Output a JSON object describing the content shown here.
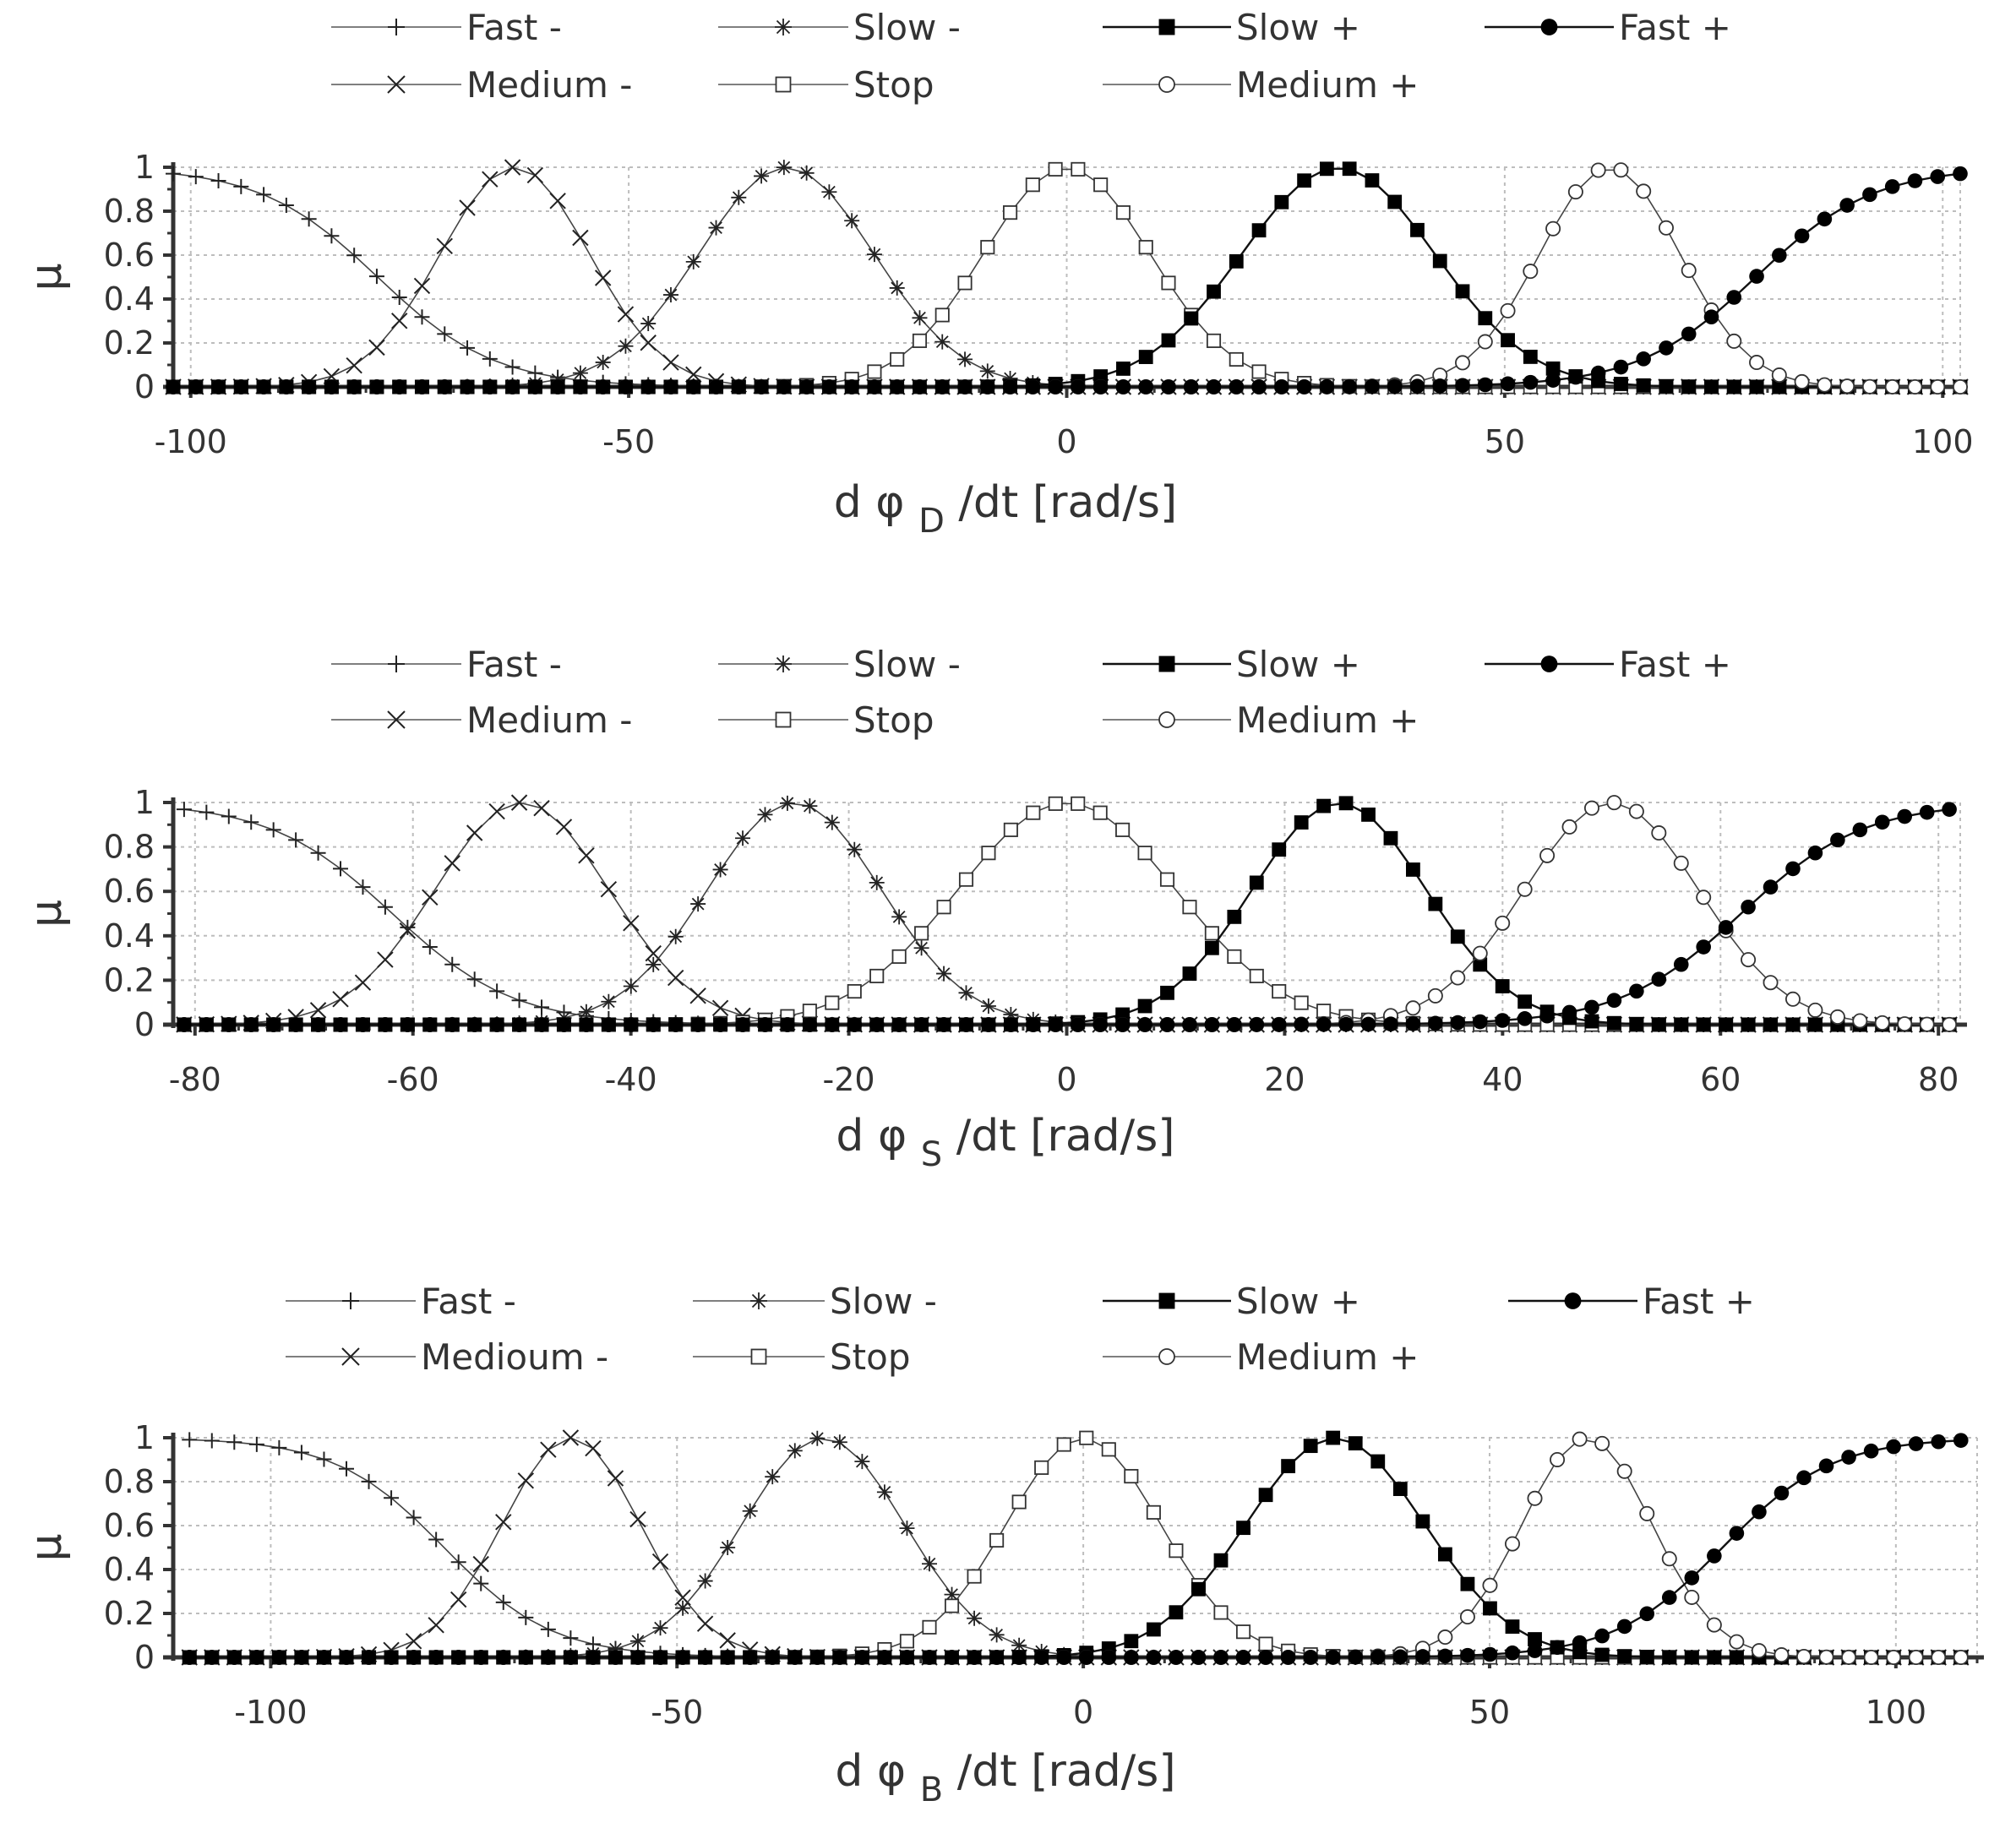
{
  "chart_data": [
    {
      "type": "line",
      "title": "",
      "xlabel": {
        "prefix": "d φ ",
        "subscript": "D",
        "suffix": " /dt [rad/s]"
      },
      "ylabel": "μ",
      "xlim": [
        -102,
        102
      ],
      "ylim": [
        0,
        1
      ],
      "xticks": [
        -100,
        -50,
        0,
        50,
        100
      ],
      "xtick_labels": [
        "-100",
        "-50",
        "0",
        "50",
        "100"
      ],
      "yticks": [
        0,
        0.2,
        0.4,
        0.6,
        0.8,
        1
      ],
      "ytick_labels": [
        "0",
        "0.2",
        "0.4",
        "0.6",
        "0.8",
        "1"
      ],
      "grid": true,
      "legend_position": "top",
      "x_sample_range": [
        -102,
        102
      ],
      "series": [
        {
          "name": "Fast -",
          "marker": "plus",
          "kind": "left-sigmoid",
          "center": -80,
          "sigma": 9
        },
        {
          "name": "Medium -",
          "marker": "x",
          "kind": "gaussian",
          "center": -63,
          "sigma": 8.5
        },
        {
          "name": "Slow -",
          "marker": "star",
          "kind": "gaussian",
          "center": -32,
          "sigma": 10
        },
        {
          "name": "Stop",
          "marker": "square-open",
          "kind": "gaussian",
          "center": 0,
          "sigma": 9.5
        },
        {
          "name": "Slow +",
          "marker": "square-filled",
          "kind": "gaussian",
          "center": 31,
          "sigma": 11
        },
        {
          "name": "Medium +",
          "marker": "circle-open",
          "kind": "gaussian",
          "center": 62,
          "sigma": 8
        },
        {
          "name": "Fast +",
          "marker": "circle-filled",
          "kind": "right-sigmoid",
          "center": 80,
          "sigma": 9
        }
      ]
    },
    {
      "type": "line",
      "title": "",
      "xlabel": {
        "prefix": "d φ ",
        "subscript": "S",
        "suffix": " /dt [rad/s]"
      },
      "ylabel": "μ",
      "xlim": [
        -82,
        82
      ],
      "ylim": [
        0,
        1
      ],
      "xticks": [
        -80,
        -60,
        -40,
        -20,
        0,
        20,
        40,
        60,
        80
      ],
      "xtick_labels": [
        "-80",
        "-60",
        "-40",
        "-20",
        "0",
        "20",
        "40",
        "60",
        "80"
      ],
      "yticks": [
        0,
        0.2,
        0.4,
        0.6,
        0.8,
        1
      ],
      "ytick_labels": [
        "0",
        "0.2",
        "0.4",
        "0.6",
        "0.8",
        "1"
      ],
      "grid": true,
      "legend_position": "top",
      "x_sample_range": [
        -81,
        81
      ],
      "series": [
        {
          "name": "Fast -",
          "marker": "plus",
          "kind": "left-sigmoid",
          "center": -63,
          "sigma": 7.5
        },
        {
          "name": "Medium -",
          "marker": "x",
          "kind": "gaussian",
          "center": -50,
          "sigma": 8
        },
        {
          "name": "Slow -",
          "marker": "star",
          "kind": "gaussian",
          "center": -25,
          "sigma": 8
        },
        {
          "name": "Stop",
          "marker": "square-open",
          "kind": "gaussian",
          "center": 0,
          "sigma": 10
        },
        {
          "name": "Slow +",
          "marker": "square-filled",
          "kind": "gaussian",
          "center": 25,
          "sigma": 8
        },
        {
          "name": "Medium +",
          "marker": "circle-open",
          "kind": "gaussian",
          "center": 50,
          "sigma": 8
        },
        {
          "name": "Fast +",
          "marker": "circle-filled",
          "kind": "right-sigmoid",
          "center": 63,
          "sigma": 7.5
        }
      ]
    },
    {
      "type": "line",
      "title": "",
      "xlabel": {
        "prefix": "d φ ",
        "subscript": "B",
        "suffix": " /dt [rad/s]"
      },
      "ylabel": "μ",
      "xlim": [
        -112,
        110
      ],
      "ylim": [
        0,
        1
      ],
      "xticks": [
        -100,
        -50,
        0,
        50,
        100
      ],
      "xtick_labels": [
        "-100",
        "-50",
        "0",
        "50",
        "100"
      ],
      "yticks": [
        0,
        0.2,
        0.4,
        0.6,
        0.8,
        1
      ],
      "ytick_labels": [
        "0",
        "0.2",
        "0.4",
        "0.6",
        "0.8",
        "1"
      ],
      "grid": true,
      "legend_position": "top",
      "x_sample_range": [
        -110,
        108
      ],
      "series": [
        {
          "name": "Fast -",
          "marker": "plus",
          "kind": "left-sigmoid",
          "center": -80,
          "sigma": 9
        },
        {
          "name": "Medioum -",
          "marker": "x",
          "kind": "gaussian",
          "center": -63,
          "sigma": 8.5
        },
        {
          "name": "Slow -",
          "marker": "star",
          "kind": "gaussian",
          "center": -32,
          "sigma": 10
        },
        {
          "name": "Stop",
          "marker": "square-open",
          "kind": "gaussian",
          "center": 0,
          "sigma": 9.5
        },
        {
          "name": "Slow +",
          "marker": "square-filled",
          "kind": "gaussian",
          "center": 31,
          "sigma": 11
        },
        {
          "name": "Medium +",
          "marker": "circle-open",
          "kind": "gaussian",
          "center": 62,
          "sigma": 8
        },
        {
          "name": "Fast +",
          "marker": "circle-filled",
          "kind": "right-sigmoid",
          "center": 80,
          "sigma": 9
        }
      ]
    }
  ]
}
